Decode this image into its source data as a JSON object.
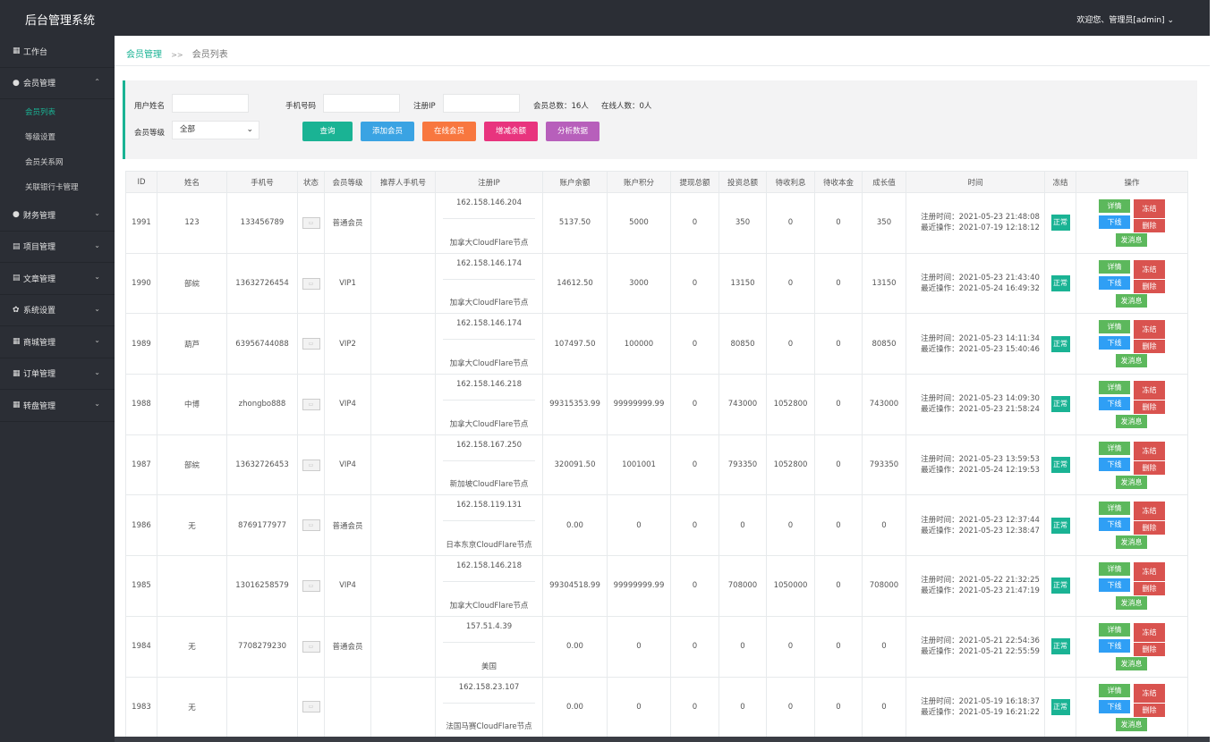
{
  "app": {
    "title": "后台管理系统",
    "user": "欢迎您、管理员[admin]"
  },
  "sidebar": {
    "items": [
      {
        "label": "工作台",
        "icon": "dashboard-icon",
        "chevron": ""
      },
      {
        "label": "会员管理",
        "icon": "user-icon",
        "chevron": "⌃"
      },
      {
        "label": "财务管理",
        "icon": "finance-icon",
        "chevron": "⌄"
      },
      {
        "label": "项目管理",
        "icon": "project-icon",
        "chevron": "⌄"
      },
      {
        "label": "文章管理",
        "icon": "article-icon",
        "chevron": "⌄"
      },
      {
        "label": "系统设置",
        "icon": "gear-icon",
        "chevron": "⌄"
      },
      {
        "label": "商城管理",
        "icon": "shop-icon",
        "chevron": "⌄"
      },
      {
        "label": "订单管理",
        "icon": "order-icon",
        "chevron": "⌄"
      },
      {
        "label": "转盘管理",
        "icon": "wheel-icon",
        "chevron": "⌄"
      }
    ],
    "submenu": [
      "会员列表",
      "等级设置",
      "会员关系网",
      "关联银行卡管理"
    ]
  },
  "breadcrumb": {
    "parent": "会员管理",
    "sep": ">>",
    "current": "会员列表"
  },
  "filter": {
    "username_label": "用户姓名",
    "phone_label": "手机号码",
    "ip_label": "注册IP",
    "username_value": "",
    "phone_value": "",
    "ip_value": "",
    "total_members": "会员总数：16人",
    "online_members": "在线人数：0人",
    "level_label": "会员等级",
    "level_value": "全部",
    "buttons": {
      "query": "查询",
      "add": "添加会员",
      "online": "在线会员",
      "adjust": "增减余额",
      "analyze": "分析数据"
    }
  },
  "colors": {
    "accent": "#1ab394",
    "query": "#1ab394",
    "add": "#3aa3e3",
    "online": "#f8773f",
    "adjust": "#e8347e",
    "analyze": "#b75fbb"
  },
  "table": {
    "headers": [
      "ID",
      "姓名",
      "手机号",
      "状态",
      "会员等级",
      "推荐人手机号",
      "注册IP",
      "账户余额",
      "账户积分",
      "提现总额",
      "投资总额",
      "待收利息",
      "待收本金",
      "成长值",
      "时间",
      "冻结",
      "操作"
    ],
    "status_text": "正常",
    "reg_prefix": "注册时间：",
    "last_prefix": "最近操作：",
    "op_labels": {
      "detail": "详情",
      "freeze": "冻结",
      "offline": "下线",
      "delete": "删除",
      "message": "发消息"
    },
    "rows": [
      {
        "id": "1991",
        "name": "123",
        "phone": "133456789",
        "level": "普通会员",
        "ref": "",
        "ip": "162.158.146.204",
        "loc": "加拿大CloudFlare节点",
        "balance": "5137.50",
        "points": "5000",
        "withdraw": "0",
        "invest": "350",
        "interest": "0",
        "principal": "0",
        "growth": "350",
        "reg": "2021-05-23 21:48:08",
        "last": "2021-07-19 12:18:12"
      },
      {
        "id": "1990",
        "name": "部綄",
        "phone": "13632726454",
        "level": "VIP1",
        "ref": "",
        "ip": "162.158.146.174",
        "loc": "加拿大CloudFlare节点",
        "balance": "14612.50",
        "points": "3000",
        "withdraw": "0",
        "invest": "13150",
        "interest": "0",
        "principal": "0",
        "growth": "13150",
        "reg": "2021-05-23 21:43:40",
        "last": "2021-05-24 16:49:32"
      },
      {
        "id": "1989",
        "name": "葫芦",
        "phone": "63956744088",
        "level": "VIP2",
        "ref": "",
        "ip": "162.158.146.174",
        "loc": "加拿大CloudFlare节点",
        "balance": "107497.50",
        "points": "100000",
        "withdraw": "0",
        "invest": "80850",
        "interest": "0",
        "principal": "0",
        "growth": "80850",
        "reg": "2021-05-23 14:11:34",
        "last": "2021-05-23 15:40:46"
      },
      {
        "id": "1988",
        "name": "中博",
        "phone": "zhongbo888",
        "level": "VIP4",
        "ref": "",
        "ip": "162.158.146.218",
        "loc": "加拿大CloudFlare节点",
        "balance": "99315353.99",
        "points": "99999999.99",
        "withdraw": "0",
        "invest": "743000",
        "interest": "1052800",
        "principal": "0",
        "growth": "743000",
        "reg": "2021-05-23 14:09:30",
        "last": "2021-05-23 21:58:24"
      },
      {
        "id": "1987",
        "name": "部綄",
        "phone": "13632726453",
        "level": "VIP4",
        "ref": "",
        "ip": "162.158.167.250",
        "loc": "新加坡CloudFlare节点",
        "balance": "320091.50",
        "points": "1001001",
        "withdraw": "0",
        "invest": "793350",
        "interest": "1052800",
        "principal": "0",
        "growth": "793350",
        "reg": "2021-05-23 13:59:53",
        "last": "2021-05-24 12:19:53"
      },
      {
        "id": "1986",
        "name": "无",
        "phone": "8769177977",
        "level": "普通会员",
        "ref": "",
        "ip": "162.158.119.131",
        "loc": "日本东京CloudFlare节点",
        "balance": "0.00",
        "points": "0",
        "withdraw": "0",
        "invest": "0",
        "interest": "0",
        "principal": "0",
        "growth": "0",
        "reg": "2021-05-23 12:37:44",
        "last": "2021-05-23 12:38:47"
      },
      {
        "id": "1985",
        "name": "",
        "phone": "13016258579",
        "level": "VIP4",
        "ref": "",
        "ip": "162.158.146.218",
        "loc": "加拿大CloudFlare节点",
        "balance": "99304518.99",
        "points": "99999999.99",
        "withdraw": "0",
        "invest": "708000",
        "interest": "1050000",
        "principal": "0",
        "growth": "708000",
        "reg": "2021-05-22 21:32:25",
        "last": "2021-05-23 21:47:19"
      },
      {
        "id": "1984",
        "name": "无",
        "phone": "7708279230",
        "level": "普通会员",
        "ref": "",
        "ip": "157.51.4.39",
        "loc": "美国",
        "balance": "0.00",
        "points": "0",
        "withdraw": "0",
        "invest": "0",
        "interest": "0",
        "principal": "0",
        "growth": "0",
        "reg": "2021-05-21 22:54:36",
        "last": "2021-05-21 22:55:59"
      },
      {
        "id": "1983",
        "name": "无",
        "phone": "",
        "level": "",
        "ref": "",
        "ip": "162.158.23.107",
        "loc": "法国马赛CloudFlare节点",
        "balance": "0.00",
        "points": "0",
        "withdraw": "0",
        "invest": "0",
        "interest": "0",
        "principal": "0",
        "growth": "0",
        "reg": "2021-05-19 16:18:37",
        "last": "2021-05-19 16:21:22"
      }
    ]
  }
}
